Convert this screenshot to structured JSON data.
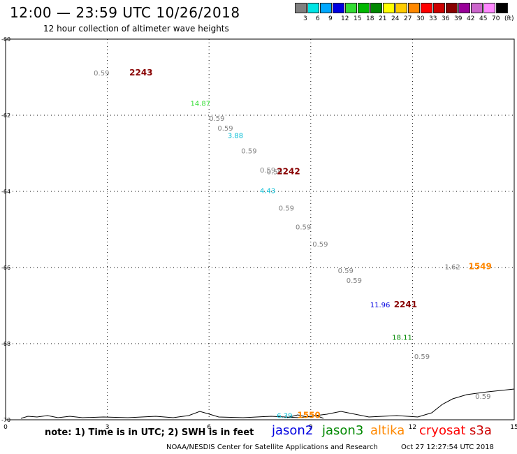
{
  "header": {
    "title": "12:00 — 23:59 UTC 10/26/2018",
    "subtitle": "12 hour collection of altimeter wave heights"
  },
  "colorbar": {
    "colors": [
      "#808080",
      "#00e5e5",
      "#00a8ff",
      "#0000e0",
      "#33dd33",
      "#00b800",
      "#008800",
      "#ffff00",
      "#ffcc00",
      "#ff8800",
      "#ff0000",
      "#cc0000",
      "#880000",
      "#990099",
      "#cc66cc",
      "#ff88ff",
      "#000000"
    ],
    "ticks": [
      "3",
      "6",
      "9",
      "12",
      "15",
      "18",
      "21",
      "24",
      "27",
      "30",
      "33",
      "36",
      "39",
      "42",
      "45",
      "70",
      "(ft)"
    ]
  },
  "axes": {
    "x_ticks": [
      "0",
      "3",
      "6",
      "9",
      "12",
      "15"
    ],
    "y_ticks": [
      "-60",
      "-62",
      "-64",
      "-66",
      "-68",
      "-70"
    ]
  },
  "observations": [
    {
      "text": "0.59",
      "lon": 2.6,
      "lat": -60.95,
      "color": "#808080"
    },
    {
      "text": "2243",
      "lon": 3.65,
      "lat": -60.95,
      "color": "#880000",
      "bold": true
    },
    {
      "text": "14.87",
      "lon": 5.45,
      "lat": -61.75,
      "color": "#33dd33"
    },
    {
      "text": "0.59",
      "lon": 6.0,
      "lat": -62.15,
      "color": "#808080"
    },
    {
      "text": "0.59",
      "lon": 6.25,
      "lat": -62.4,
      "color": "#808080"
    },
    {
      "text": "3.88",
      "lon": 6.55,
      "lat": -62.6,
      "color": "#00bcd4"
    },
    {
      "text": "0.59",
      "lon": 6.95,
      "lat": -63.0,
      "color": "#808080"
    },
    {
      "text": "0.59",
      "lon": 7.5,
      "lat": -63.5,
      "color": "#808080"
    },
    {
      "text": "0.59",
      "lon": 7.7,
      "lat": -63.55,
      "color": "#808080"
    },
    {
      "text": "2242",
      "lon": 8.0,
      "lat": -63.55,
      "color": "#880000",
      "bold": true
    },
    {
      "text": "4.43",
      "lon": 7.5,
      "lat": -64.05,
      "color": "#00bcd4"
    },
    {
      "text": "0.59",
      "lon": 8.05,
      "lat": -64.5,
      "color": "#808080"
    },
    {
      "text": "0.59",
      "lon": 8.55,
      "lat": -65.0,
      "color": "#808080"
    },
    {
      "text": "0.59",
      "lon": 9.05,
      "lat": -65.45,
      "color": "#808080"
    },
    {
      "text": "1.62",
      "lon": 12.95,
      "lat": -66.05,
      "color": "#808080"
    },
    {
      "text": "1549",
      "lon": 13.65,
      "lat": -66.05,
      "color": "#ff8800",
      "bold": true
    },
    {
      "text": "0.59",
      "lon": 9.8,
      "lat": -66.15,
      "color": "#808080"
    },
    {
      "text": "0.59",
      "lon": 10.05,
      "lat": -66.4,
      "color": "#808080"
    },
    {
      "text": "11.96",
      "lon": 10.75,
      "lat": -67.05,
      "color": "#0000e0"
    },
    {
      "text": "2241",
      "lon": 11.45,
      "lat": -67.05,
      "color": "#880000",
      "bold": true
    },
    {
      "text": "18.11",
      "lon": 11.4,
      "lat": -67.9,
      "color": "#008800"
    },
    {
      "text": "0.59",
      "lon": 12.05,
      "lat": -68.4,
      "color": "#808080"
    },
    {
      "text": "0.59",
      "lon": 13.85,
      "lat": -69.45,
      "color": "#808080"
    },
    {
      "text": "6.39",
      "lon": 8.0,
      "lat": -69.95,
      "color": "#00bcd4"
    },
    {
      "text": "1550",
      "lon": 8.6,
      "lat": -69.95,
      "color": "#ff8800",
      "bold": true
    }
  ],
  "footer": {
    "note": "note: 1) Time is in UTC; 2) SWH is in feet",
    "satellites": [
      {
        "name": "jason2",
        "color": "#0000e0"
      },
      {
        "name": "jason3",
        "color": "#008800"
      },
      {
        "name": "altika",
        "color": "#ff8800"
      },
      {
        "name": "cryosat",
        "color": "#ff0000"
      },
      {
        "name": "s3a",
        "color": "#cc0000"
      }
    ],
    "credit": "NOAA/NESDIS Center for Satellite Applications and Research",
    "generated": "Oct 27 12:27:54 UTC 2018"
  }
}
